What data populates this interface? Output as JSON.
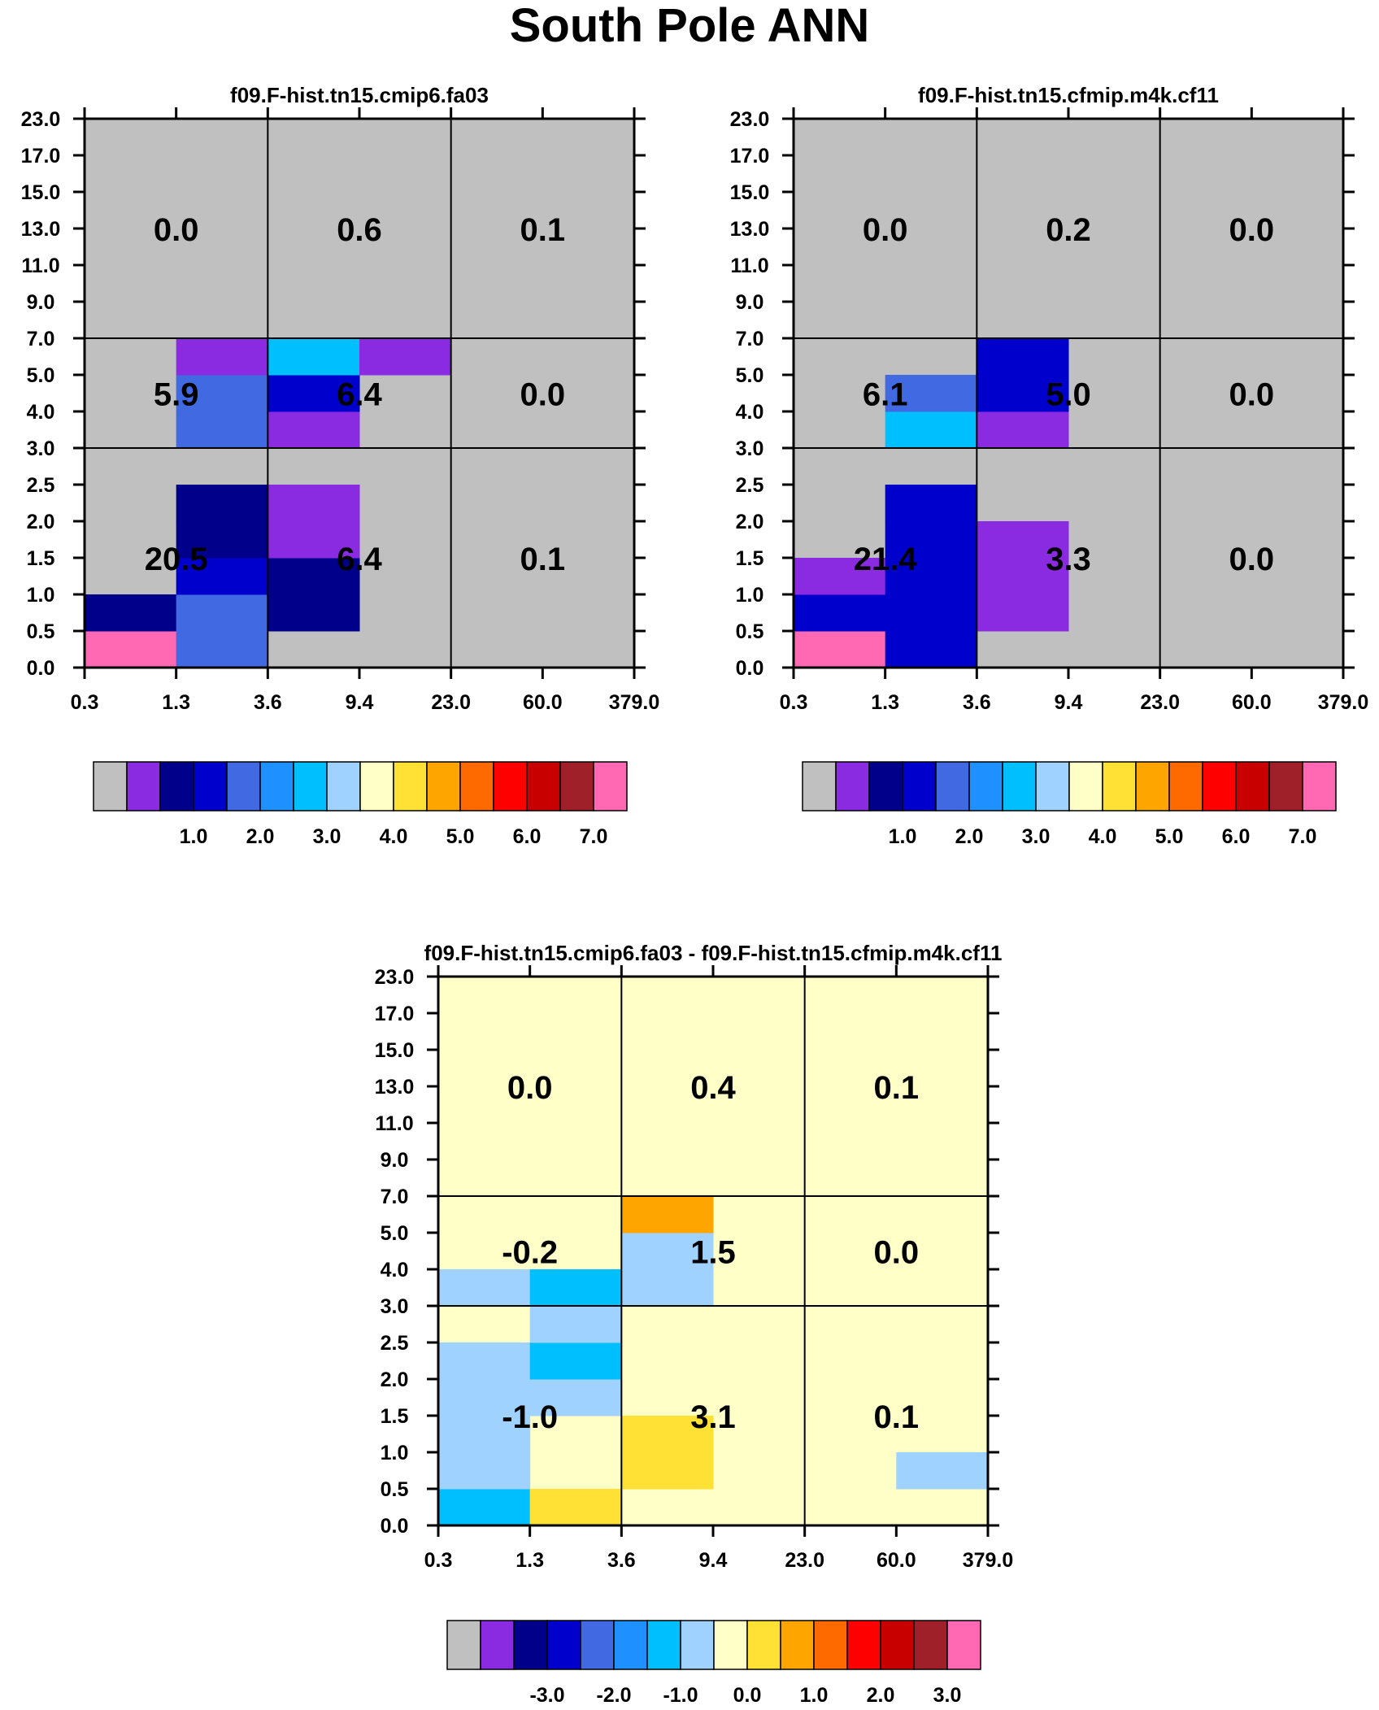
{
  "figure_title": "South Pole ANN",
  "colors": {
    "bins": [
      "#c0c0c0",
      "#8a2be2",
      "#00008b",
      "#0000cd",
      "#4169e1",
      "#1e90ff",
      "#00bfff",
      "#a0d2ff",
      "#ffffc8",
      "#ffe135",
      "#ffa500",
      "#ff6a00",
      "#ff0000",
      "#c80000",
      "#a0202a",
      "#ff69b4"
    ]
  },
  "chart_data": [
    {
      "type": "heatmap",
      "title": "f09.F-hist.tn15.cmip6.fa03",
      "x_tick_labels": [
        "0.3",
        "1.3",
        "3.6",
        "9.4",
        "23.0",
        "60.0",
        "379.0"
      ],
      "y_tick_labels": [
        "0.0",
        "0.5",
        "1.0",
        "1.5",
        "2.0",
        "2.5",
        "3.0",
        "4.0",
        "5.0",
        "7.0",
        "9.0",
        "11.0",
        "13.0",
        "15.0",
        "17.0",
        "23.0"
      ],
      "cells": [
        {
          "x": 0,
          "y": 0,
          "bin": 15
        },
        {
          "x": 0,
          "y": 1,
          "bin": 2
        },
        {
          "x": 1,
          "y": 0,
          "bin": 4
        },
        {
          "x": 1,
          "y": 1,
          "bin": 4
        },
        {
          "x": 1,
          "y": 2,
          "bin": 3
        },
        {
          "x": 1,
          "y": 3,
          "bin": 2
        },
        {
          "x": 1,
          "y": 4,
          "bin": 2
        },
        {
          "x": 1,
          "y": 6,
          "bin": 4
        },
        {
          "x": 1,
          "y": 7,
          "bin": 4
        },
        {
          "x": 1,
          "y": 8,
          "bin": 1
        },
        {
          "x": 2,
          "y": 1,
          "bin": 2
        },
        {
          "x": 2,
          "y": 2,
          "bin": 2
        },
        {
          "x": 2,
          "y": 3,
          "bin": 1
        },
        {
          "x": 2,
          "y": 4,
          "bin": 1
        },
        {
          "x": 2,
          "y": 6,
          "bin": 1
        },
        {
          "x": 2,
          "y": 7,
          "bin": 3
        },
        {
          "x": 2,
          "y": 8,
          "bin": 6
        },
        {
          "x": 3,
          "y": 8,
          "bin": 1
        }
      ],
      "region_totals": [
        {
          "value": "20.5",
          "col": 0,
          "row": 0
        },
        {
          "value": "6.4",
          "col": 1,
          "row": 0
        },
        {
          "value": "0.1",
          "col": 2,
          "row": 0
        },
        {
          "value": "5.9",
          "col": 0,
          "row": 1
        },
        {
          "value": "6.4",
          "col": 1,
          "row": 1
        },
        {
          "value": "0.0",
          "col": 2,
          "row": 1
        },
        {
          "value": "0.0",
          "col": 0,
          "row": 2
        },
        {
          "value": "0.6",
          "col": 1,
          "row": 2
        },
        {
          "value": "0.1",
          "col": 2,
          "row": 2
        }
      ],
      "colorbar_labels": [
        "1.0",
        "2.0",
        "3.0",
        "4.0",
        "5.0",
        "6.0",
        "7.0"
      ]
    },
    {
      "type": "heatmap",
      "title": "f09.F-hist.tn15.cfmip.m4k.cf11",
      "x_tick_labels": [
        "0.3",
        "1.3",
        "3.6",
        "9.4",
        "23.0",
        "60.0",
        "379.0"
      ],
      "y_tick_labels": [
        "0.0",
        "0.5",
        "1.0",
        "1.5",
        "2.0",
        "2.5",
        "3.0",
        "4.0",
        "5.0",
        "7.0",
        "9.0",
        "11.0",
        "13.0",
        "15.0",
        "17.0",
        "23.0"
      ],
      "cells": [
        {
          "x": 0,
          "y": 0,
          "bin": 15
        },
        {
          "x": 0,
          "y": 1,
          "bin": 3
        },
        {
          "x": 0,
          "y": 2,
          "bin": 1
        },
        {
          "x": 1,
          "y": 0,
          "bin": 3
        },
        {
          "x": 1,
          "y": 1,
          "bin": 3
        },
        {
          "x": 1,
          "y": 2,
          "bin": 3
        },
        {
          "x": 1,
          "y": 3,
          "bin": 3
        },
        {
          "x": 1,
          "y": 4,
          "bin": 3
        },
        {
          "x": 1,
          "y": 6,
          "bin": 6
        },
        {
          "x": 1,
          "y": 7,
          "bin": 4
        },
        {
          "x": 2,
          "y": 1,
          "bin": 1
        },
        {
          "x": 2,
          "y": 2,
          "bin": 1
        },
        {
          "x": 2,
          "y": 3,
          "bin": 1
        },
        {
          "x": 2,
          "y": 6,
          "bin": 1
        },
        {
          "x": 2,
          "y": 7,
          "bin": 3
        },
        {
          "x": 2,
          "y": 8,
          "bin": 3
        }
      ],
      "region_totals": [
        {
          "value": "21.4",
          "col": 0,
          "row": 0
        },
        {
          "value": "3.3",
          "col": 1,
          "row": 0
        },
        {
          "value": "0.0",
          "col": 2,
          "row": 0
        },
        {
          "value": "6.1",
          "col": 0,
          "row": 1
        },
        {
          "value": "5.0",
          "col": 1,
          "row": 1
        },
        {
          "value": "0.0",
          "col": 2,
          "row": 1
        },
        {
          "value": "0.0",
          "col": 0,
          "row": 2
        },
        {
          "value": "0.2",
          "col": 1,
          "row": 2
        },
        {
          "value": "0.0",
          "col": 2,
          "row": 2
        }
      ],
      "colorbar_labels": [
        "1.0",
        "2.0",
        "3.0",
        "4.0",
        "5.0",
        "6.0",
        "7.0"
      ]
    },
    {
      "type": "heatmap",
      "title": "f09.F-hist.tn15.cmip6.fa03 - f09.F-hist.tn15.cfmip.m4k.cf11",
      "background_bin": 8,
      "x_tick_labels": [
        "0.3",
        "1.3",
        "3.6",
        "9.4",
        "23.0",
        "60.0",
        "379.0"
      ],
      "y_tick_labels": [
        "0.0",
        "0.5",
        "1.0",
        "1.5",
        "2.0",
        "2.5",
        "3.0",
        "4.0",
        "5.0",
        "7.0",
        "9.0",
        "11.0",
        "13.0",
        "15.0",
        "17.0",
        "23.0"
      ],
      "cells": [
        {
          "x": 0,
          "y": 0,
          "bin": 6
        },
        {
          "x": 0,
          "y": 1,
          "bin": 7
        },
        {
          "x": 0,
          "y": 2,
          "bin": 7
        },
        {
          "x": 0,
          "y": 3,
          "bin": 7
        },
        {
          "x": 0,
          "y": 4,
          "bin": 7
        },
        {
          "x": 0,
          "y": 6,
          "bin": 7
        },
        {
          "x": 1,
          "y": 0,
          "bin": 9
        },
        {
          "x": 1,
          "y": 3,
          "bin": 7
        },
        {
          "x": 1,
          "y": 4,
          "bin": 6
        },
        {
          "x": 1,
          "y": 5,
          "bin": 7
        },
        {
          "x": 1,
          "y": 6,
          "bin": 6
        },
        {
          "x": 2,
          "y": 1,
          "bin": 9
        },
        {
          "x": 2,
          "y": 2,
          "bin": 9
        },
        {
          "x": 2,
          "y": 6,
          "bin": 7
        },
        {
          "x": 2,
          "y": 7,
          "bin": 7
        },
        {
          "x": 2,
          "y": 8,
          "bin": 10
        },
        {
          "x": 5,
          "y": 1,
          "bin": 7
        }
      ],
      "region_totals": [
        {
          "value": "-1.0",
          "col": 0,
          "row": 0
        },
        {
          "value": "3.1",
          "col": 1,
          "row": 0
        },
        {
          "value": "0.1",
          "col": 2,
          "row": 0
        },
        {
          "value": "-0.2",
          "col": 0,
          "row": 1
        },
        {
          "value": "1.5",
          "col": 1,
          "row": 1
        },
        {
          "value": "0.0",
          "col": 2,
          "row": 1
        },
        {
          "value": "0.0",
          "col": 0,
          "row": 2
        },
        {
          "value": "0.4",
          "col": 1,
          "row": 2
        },
        {
          "value": "0.1",
          "col": 2,
          "row": 2
        }
      ],
      "colorbar_labels": [
        "-3.0",
        "-2.0",
        "-1.0",
        "0.0",
        "1.0",
        "2.0",
        "3.0"
      ]
    }
  ]
}
